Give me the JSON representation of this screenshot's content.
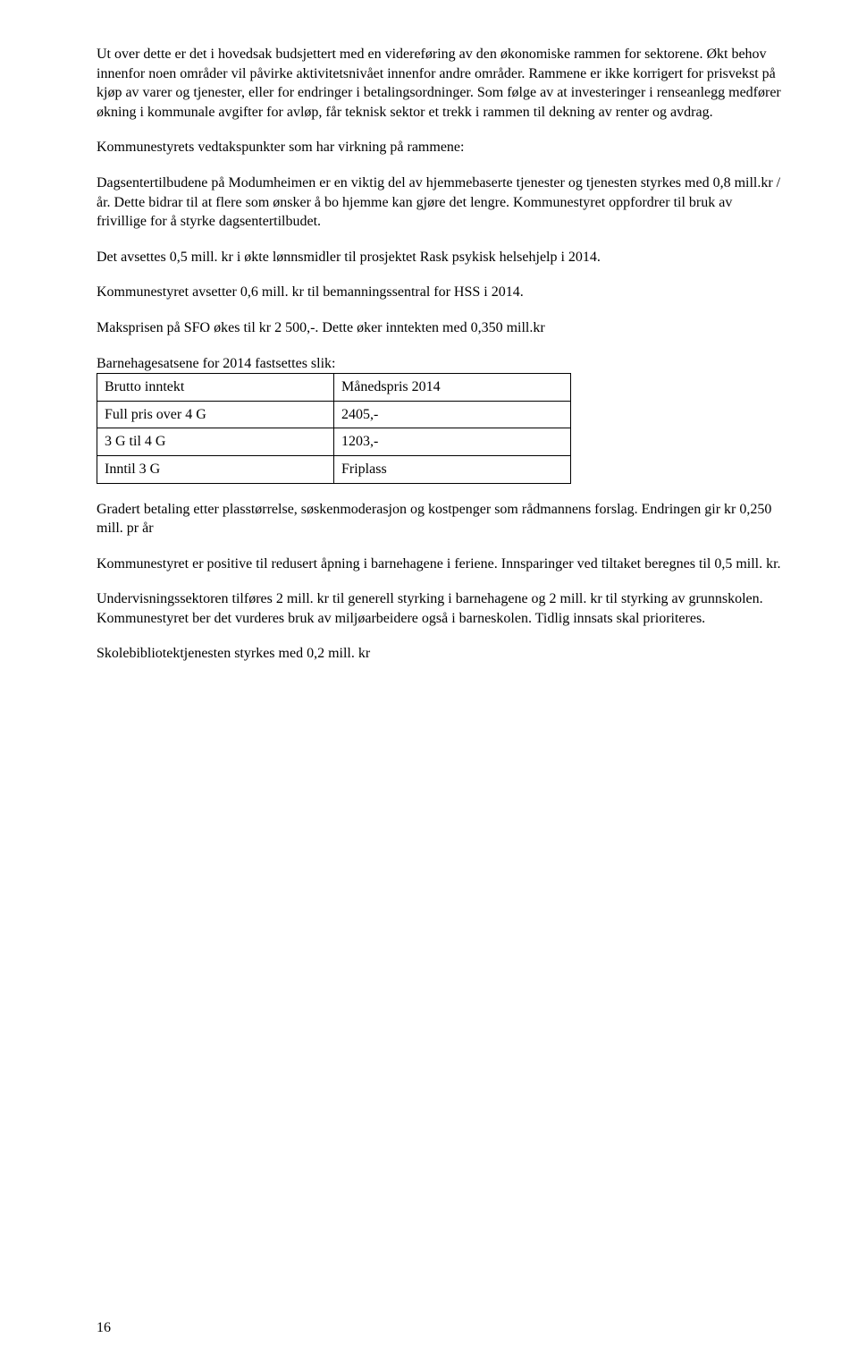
{
  "paragraphs": {
    "p1": "Ut over dette er det i hovedsak budsjettert med en videreføring av den økonomiske rammen for sektorene. Økt behov innenfor noen områder vil påvirke aktivitetsnivået innenfor andre områder. Rammene er ikke korrigert for prisvekst på kjøp av varer og tjenester, eller for endringer i betalingsordninger. Som følge av at investeringer i renseanlegg medfører økning i kommunale avgifter for avløp, får teknisk sektor et trekk i rammen til dekning av renter og avdrag.",
    "p2": "Kommunestyrets vedtakspunkter som har virkning på rammene:",
    "p3": "Dagsentertilbudene på Modumheimen er en viktig del av hjemmebaserte tjenester og tjenesten styrkes med 0,8 mill.kr /år. Dette bidrar til at flere som ønsker å bo hjemme kan gjøre det lengre. Kommunestyret oppfordrer til bruk av frivillige for å styrke dagsentertilbudet.",
    "p4": "Det avsettes 0,5 mill. kr i økte lønnsmidler til prosjektet Rask psykisk helsehjelp i 2014.",
    "p5": "Kommunestyret avsetter 0,6 mill. kr til bemanningssentral for HSS i 2014.",
    "p6": "Maksprisen på SFO økes til kr 2 500,-. Dette øker inntekten med 0,350 mill.kr",
    "p7": "Barnehagesatsene for 2014 fastsettes slik:",
    "p8": "Gradert betaling etter plasstørrelse, søskenmoderasjon og kostpenger som rådmannens forslag. Endringen gir kr 0,250 mill. pr år",
    "p9": "Kommunestyret er positive til redusert åpning i barnehagene i feriene. Innsparinger ved tiltaket beregnes til 0,5 mill. kr.",
    "p10": "Undervisningssektoren tilføres 2 mill. kr til generell styrking i barnehagene og 2 mill. kr til styrking av grunnskolen. Kommunestyret ber det vurderes bruk av miljøarbeidere også i barneskolen. Tidlig innsats skal prioriteres.",
    "p11": "Skolebibliotektjenesten styrkes med 0,2 mill. kr"
  },
  "table": {
    "header": {
      "c1": "Brutto inntekt",
      "c2": "Månedspris 2014"
    },
    "row1": {
      "c1": "Full pris over 4 G",
      "c2": "2405,-"
    },
    "row2": {
      "c1": "3 G til 4 G",
      "c2": "1203,-"
    },
    "row3": {
      "c1": "Inntil 3 G",
      "c2": "Friplass"
    }
  },
  "pageNumber": "16"
}
